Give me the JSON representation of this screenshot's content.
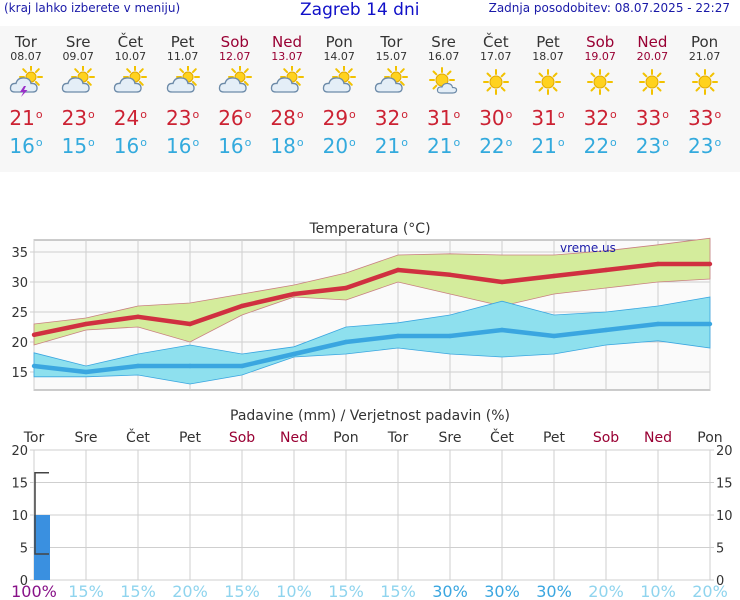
{
  "header": {
    "hint": "(kraj lahko izberete v meniju)",
    "title": "Zagreb 14 dni",
    "updated": "Zadnja posodobitev: 08.07.2025 - 22:27"
  },
  "days": [
    {
      "name": "Tor",
      "date": "08.07",
      "weekend": false,
      "icon": "partly-cloudy-thunder-icon",
      "tmax": "21",
      "tmin": "16"
    },
    {
      "name": "Sre",
      "date": "09.07",
      "weekend": false,
      "icon": "partly-cloudy-icon",
      "tmax": "23",
      "tmin": "15"
    },
    {
      "name": "Čet",
      "date": "10.07",
      "weekend": false,
      "icon": "partly-cloudy-icon",
      "tmax": "24",
      "tmin": "16"
    },
    {
      "name": "Pet",
      "date": "11.07",
      "weekend": false,
      "icon": "partly-cloudy-icon",
      "tmax": "23",
      "tmin": "16"
    },
    {
      "name": "Sob",
      "date": "12.07",
      "weekend": true,
      "icon": "partly-cloudy-icon",
      "tmax": "26",
      "tmin": "16"
    },
    {
      "name": "Ned",
      "date": "13.07",
      "weekend": true,
      "icon": "partly-cloudy-icon",
      "tmax": "28",
      "tmin": "18"
    },
    {
      "name": "Pon",
      "date": "14.07",
      "weekend": false,
      "icon": "partly-cloudy-icon",
      "tmax": "29",
      "tmin": "20"
    },
    {
      "name": "Tor",
      "date": "15.07",
      "weekend": false,
      "icon": "partly-cloudy-icon",
      "tmax": "32",
      "tmin": "21"
    },
    {
      "name": "Sre",
      "date": "16.07",
      "weekend": false,
      "icon": "mostly-sunny-icon",
      "tmax": "31",
      "tmin": "21"
    },
    {
      "name": "Čet",
      "date": "17.07",
      "weekend": false,
      "icon": "sun-icon",
      "tmax": "30",
      "tmin": "22"
    },
    {
      "name": "Pet",
      "date": "18.07",
      "weekend": false,
      "icon": "sun-icon",
      "tmax": "31",
      "tmin": "21"
    },
    {
      "name": "Sob",
      "date": "19.07",
      "weekend": true,
      "icon": "sun-icon",
      "tmax": "32",
      "tmin": "22"
    },
    {
      "name": "Ned",
      "date": "20.07",
      "weekend": true,
      "icon": "sun-icon",
      "tmax": "33",
      "tmin": "23"
    },
    {
      "name": "Pon",
      "date": "21.07",
      "weekend": false,
      "icon": "sun-icon",
      "tmax": "33",
      "tmin": "23"
    }
  ],
  "colors": {
    "max_line": "#d03040",
    "max_band": "#d4ec9c",
    "min_line": "#3aa6e0",
    "min_band": "#8ee0ee",
    "precip_bar": "#3a90e0",
    "weekend": "#990033",
    "normal": "#333333"
  },
  "chart_data": [
    {
      "type": "line",
      "title": "Temperatura (°C)",
      "watermark": "vreme.us",
      "ylim": [
        12,
        37
      ],
      "yticks": [
        15,
        20,
        25,
        30,
        35
      ],
      "grid": true,
      "series": [
        {
          "values": [
            21.2,
            23,
            24.2,
            23,
            26,
            28,
            29,
            32,
            31.2,
            30,
            31,
            32,
            33,
            33
          ]
        },
        {
          "values": [
            16,
            15,
            16,
            16,
            16,
            18,
            20,
            21,
            21,
            22,
            21,
            22,
            23,
            23
          ]
        }
      ],
      "max_band": {
        "low": [
          19.5,
          22,
          22.5,
          20,
          24.5,
          27.5,
          27,
          30,
          28,
          26,
          28,
          29,
          30,
          30.5
        ],
        "high": [
          23,
          24,
          26,
          26.5,
          28,
          29.5,
          31.5,
          34.5,
          34.7,
          34.5,
          34.5,
          35.2,
          36.2,
          37.3
        ]
      },
      "min_band": {
        "low": [
          14.2,
          14.2,
          14.5,
          13,
          14.5,
          17.5,
          18,
          19,
          18,
          17.5,
          18,
          19.5,
          20.2,
          19
        ]
      },
      "min_band_high": [
        18.2,
        16,
        18,
        19.5,
        18,
        19.2,
        22.5,
        23.2,
        24.5,
        26.8,
        24.5,
        25,
        26,
        27.5
      ]
    },
    {
      "type": "bar",
      "title": "Padavine (mm) / Verjetnost padavin (%)",
      "categories": [
        "Tor",
        "Sre",
        "Čet",
        "Pet",
        "Sob",
        "Ned",
        "Pon",
        "Tor",
        "Sre",
        "Čet",
        "Pet",
        "Sob",
        "Ned",
        "Pon"
      ],
      "values": [
        10,
        0,
        0,
        0,
        0,
        0,
        0,
        0,
        0,
        0,
        0,
        0,
        0,
        0
      ],
      "range": {
        "low": 4,
        "high": 16.5
      },
      "ylim": [
        0,
        20
      ],
      "yticks": [
        0,
        5,
        10,
        15,
        20
      ],
      "probability": [
        "100%",
        "15%",
        "15%",
        "20%",
        "15%",
        "10%",
        "15%",
        "15%",
        "30%",
        "30%",
        "30%",
        "20%",
        "10%",
        "20%"
      ],
      "probability_colors": [
        "#881188",
        "#8fd4ee",
        "#8fd4ee",
        "#8fd4ee",
        "#8fd4ee",
        "#8fd4ee",
        "#8fd4ee",
        "#8fd4ee",
        "#3aa6e0",
        "#3aa6e0",
        "#3aa6e0",
        "#8fd4ee",
        "#8fd4ee",
        "#8fd4ee"
      ]
    }
  ]
}
